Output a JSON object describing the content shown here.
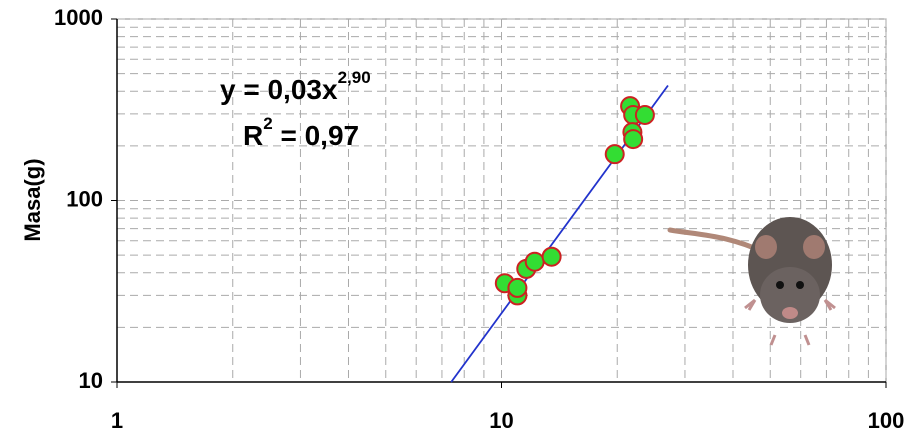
{
  "chart_data": {
    "type": "scatter",
    "y_label": "Masa(g)",
    "x": [
      10.2,
      11.0,
      11.0,
      11.6,
      12.2,
      13.5,
      19.7,
      21.6,
      22.0,
      21.9,
      22.0,
      23.6
    ],
    "values": [
      35,
      30,
      33,
      42,
      46,
      49,
      180,
      331,
      296,
      238,
      218,
      296
    ],
    "color": "#33dd33",
    "edge_color": "#cc2222",
    "fit": {
      "x": [
        7.4,
        27.1
      ],
      "values": [
        10,
        430
      ],
      "color": "#2233cc"
    },
    "annotations": {
      "equation": "y = 0,03x",
      "exponent": "2,90",
      "r": "R",
      "r_exp": "2",
      "r_value": " = 0,97"
    },
    "xscale": "log",
    "yscale": "log",
    "xlim": [
      1,
      100
    ],
    "ylim": [
      10,
      1000
    ],
    "xticks": [
      1,
      10,
      100
    ],
    "yticks": [
      10,
      100,
      1000
    ],
    "grid": true,
    "minor_grid": true
  }
}
